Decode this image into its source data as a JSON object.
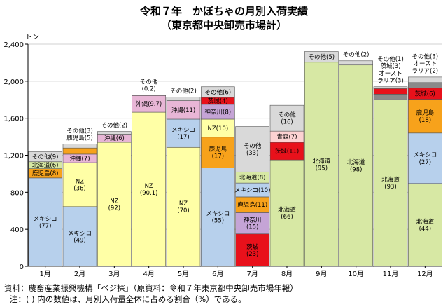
{
  "title": "令和７年　かぼちゃの月別入荷実績",
  "subtitle": "（東京都中央卸売市場計）",
  "footer": {
    "source": "資料：農畜産業振興機構「ベジ探」（原資料：令和７年東京都中央卸売市場年報）",
    "note": "注：( ) 内の数値は、月別入荷量全体に占める割合（%）である。"
  },
  "colors": {
    "北海道": "#d7e8a4",
    "メキシコ": "#b7d0ec",
    "鹿児島": "#f7a21b",
    "NZ": "#ffffa6",
    "沖縄": "#e8b6d6",
    "神奈川": "#c5a4d6",
    "茨城": "#e8111b",
    "青森": "#fcd2d2",
    "オーストラリア": "#8a8a8a",
    "その他": "#d9d9d9"
  },
  "chart_data": {
    "type": "bar",
    "stacked": true,
    "title": "令和７年　かぼちゃの月別入荷実績",
    "subtitle": "（東京都中央卸売市場計）",
    "ylabel": "トン",
    "ylim": [
      0,
      2400
    ],
    "yticks": [
      0,
      400,
      800,
      1200,
      1600,
      2000,
      2400
    ],
    "ytick_labels": [
      "0",
      "400",
      "800",
      "1,200",
      "1,600",
      "2,000",
      "2,400"
    ],
    "grid": true,
    "categories": [
      "1月",
      "2月",
      "3月",
      "4月",
      "5月",
      "6月",
      "7月",
      "8月",
      "9月",
      "10月",
      "11月",
      "12月"
    ],
    "months": [
      {
        "segments": [
          {
            "name": "メキシコ",
            "value": 955,
            "label": "メキシコ\n(77)"
          },
          {
            "name": "鹿児島",
            "value": 100,
            "label": "鹿児島(8)"
          },
          {
            "name": "北海道",
            "value": 75,
            "label": "北海道(6)"
          },
          {
            "name": "その他",
            "value": 110,
            "label": "その他(9)"
          }
        ]
      },
      {
        "segments": [
          {
            "name": "メキシコ",
            "value": 645,
            "label": "メキシコ\n(49)"
          },
          {
            "name": "NZ",
            "value": 475,
            "label": "NZ\n(36)"
          },
          {
            "name": "沖縄",
            "value": 92,
            "label": "沖縄(7)"
          },
          {
            "name": "鹿児島",
            "value": 66
          },
          {
            "name": "その他",
            "value": 42
          }
        ],
        "callout": "その他(3)\n鹿児島(5)"
      },
      {
        "segments": [
          {
            "name": "NZ",
            "value": 1340,
            "label": "NZ\n(92)"
          },
          {
            "name": "沖縄",
            "value": 87,
            "label": "沖縄(6)"
          },
          {
            "name": "その他",
            "value": 29
          }
        ],
        "callout": "その他(2)"
      },
      {
        "segments": [
          {
            "name": "NZ",
            "value": 1665,
            "label": "NZ\n(90.1)"
          },
          {
            "name": "沖縄",
            "value": 180,
            "label": "沖縄(9.7)"
          },
          {
            "name": "その他",
            "value": 4
          }
        ],
        "callout": "その他\n(0.2)"
      },
      {
        "segments": [
          {
            "name": "NZ",
            "value": 1285,
            "label": "NZ\n(70)"
          },
          {
            "name": "メキシコ",
            "value": 305,
            "label": "メキシコ\n(17)"
          },
          {
            "name": "沖縄",
            "value": 200,
            "label": "沖縄(11)"
          },
          {
            "name": "その他",
            "value": 37
          }
        ],
        "callout": "その他(2)"
      },
      {
        "segments": [
          {
            "name": "メキシコ",
            "value": 1065,
            "label": "メキシコ\n(55)"
          },
          {
            "name": "鹿児島",
            "value": 330,
            "label": "鹿児島\n(17)"
          },
          {
            "name": "NZ",
            "value": 195,
            "label": "NZ(10)"
          },
          {
            "name": "神奈川",
            "value": 160,
            "label": "神奈川(8)"
          },
          {
            "name": "茨城",
            "value": 75,
            "label": "茨城(4)"
          },
          {
            "name": "その他",
            "value": 115,
            "label": "その他(6)"
          }
        ]
      },
      {
        "segments": [
          {
            "name": "茨城",
            "value": 350,
            "label": "茨城\n(23)"
          },
          {
            "name": "神奈川",
            "value": 230,
            "label": "神奈川\n(15)"
          },
          {
            "name": "鹿児島",
            "value": 170,
            "label": "鹿児島(11)"
          },
          {
            "name": "メキシコ",
            "value": 150,
            "label": "メキシコ(10)"
          },
          {
            "name": "北海道",
            "value": 120,
            "label": "北海道(8)"
          },
          {
            "name": "その他",
            "value": 490,
            "label": "その他\n(33)"
          }
        ]
      },
      {
        "segments": [
          {
            "name": "北海道",
            "value": 1150,
            "label": "北海道\n(66)"
          },
          {
            "name": "茨城",
            "value": 190,
            "label": "茨城(11)"
          },
          {
            "name": "青森",
            "value": 120,
            "label": "青森(7)"
          },
          {
            "name": "その他",
            "value": 280,
            "label": "その他\n(16)"
          }
        ]
      },
      {
        "segments": [
          {
            "name": "北海道",
            "value": 2205,
            "label": "北海道\n(95)"
          },
          {
            "name": "その他",
            "value": 115,
            "label": "その他(5)"
          }
        ]
      },
      {
        "segments": [
          {
            "name": "北海道",
            "value": 2175,
            "label": "北海道\n(98)"
          },
          {
            "name": "その他",
            "value": 45
          }
        ],
        "callout": "その他(2)"
      },
      {
        "segments": [
          {
            "name": "北海道",
            "value": 1800,
            "label": "北海道\n(93)"
          },
          {
            "name": "オーストラリア",
            "value": 60
          },
          {
            "name": "茨城",
            "value": 60
          },
          {
            "name": "その他",
            "value": 20
          }
        ],
        "callout": "その他(1)\n茨城(3)\nオースト\nラリア(3)"
      },
      {
        "segments": [
          {
            "name": "北海道",
            "value": 895,
            "label": "北海道\n(44)"
          },
          {
            "name": "メキシコ",
            "value": 545,
            "label": "メキシコ\n(27)"
          },
          {
            "name": "鹿児島",
            "value": 365,
            "label": "鹿児島\n(18)"
          },
          {
            "name": "茨城",
            "value": 120,
            "label": "茨城(6)"
          },
          {
            "name": "オーストラリア",
            "value": 60
          },
          {
            "name": "その他",
            "value": 60
          }
        ],
        "callout": "その他(3)\nオースト\nラリア(2)"
      }
    ]
  }
}
